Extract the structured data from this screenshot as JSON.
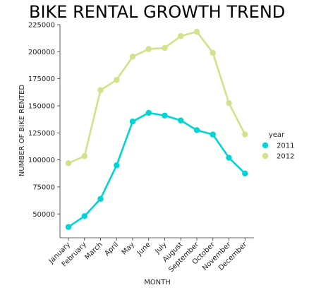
{
  "chart_data": {
    "type": "line",
    "title": "BIKE RENTAL GROWTH TREND",
    "xlabel": "MONTH",
    "ylabel": "NUMBER OF BIKE RENTED",
    "categories": [
      "January",
      "February",
      "March",
      "April",
      "May",
      "June",
      "July",
      "August",
      "September",
      "October",
      "November",
      "December"
    ],
    "y_ticks": [
      50000,
      75000,
      100000,
      125000,
      150000,
      175000,
      200000,
      225000
    ],
    "ylim": [
      28000,
      225000
    ],
    "grid": false,
    "legend_title": "year",
    "legend_position": "right",
    "series": [
      {
        "name": "2011",
        "color": "#00d4d4",
        "values": [
          38000,
          48000,
          64000,
          95000,
          135500,
          143500,
          141000,
          136500,
          127500,
          123500,
          102000,
          87500
        ]
      },
      {
        "name": "2012",
        "color": "#d4e08a",
        "values": [
          97000,
          103500,
          164500,
          174000,
          195500,
          202500,
          203500,
          214500,
          218500,
          199000,
          152500,
          123500
        ]
      }
    ]
  }
}
